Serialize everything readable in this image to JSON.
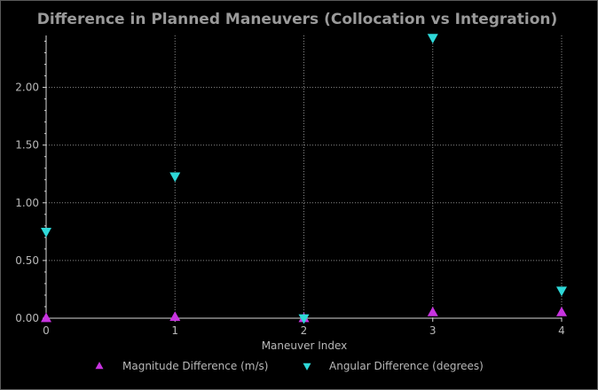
{
  "chart_data": {
    "type": "scatter",
    "title": "Difference in Planned Maneuvers (Collocation vs Integration)",
    "xlabel": "Maneuver Index",
    "ylabel": "",
    "x": [
      0,
      1,
      2,
      3,
      4
    ],
    "xlim": [
      0,
      4
    ],
    "ylim": [
      0,
      2.45
    ],
    "x_ticks": [
      0,
      1,
      2,
      3,
      4
    ],
    "x_tick_labels": [
      "0",
      "1",
      "2",
      "3",
      "4"
    ],
    "y_ticks": [
      0,
      0.5,
      1.0,
      1.5,
      2.0
    ],
    "y_tick_labels": [
      "0.00",
      "0.50",
      "1.00",
      "1.50",
      "2.00"
    ],
    "grid": true,
    "legend_position": "bottom-center",
    "series": [
      {
        "name": "Magnitude Difference (m/s)",
        "marker": "triangle-up",
        "color": "#c833e0",
        "values": [
          0.0,
          0.01,
          0.0,
          0.05,
          0.05
        ]
      },
      {
        "name": "Angular Difference (degrees)",
        "marker": "triangle-down",
        "color": "#2ed8d8",
        "values": [
          0.75,
          1.23,
          0.0,
          2.43,
          0.24
        ]
      }
    ]
  }
}
